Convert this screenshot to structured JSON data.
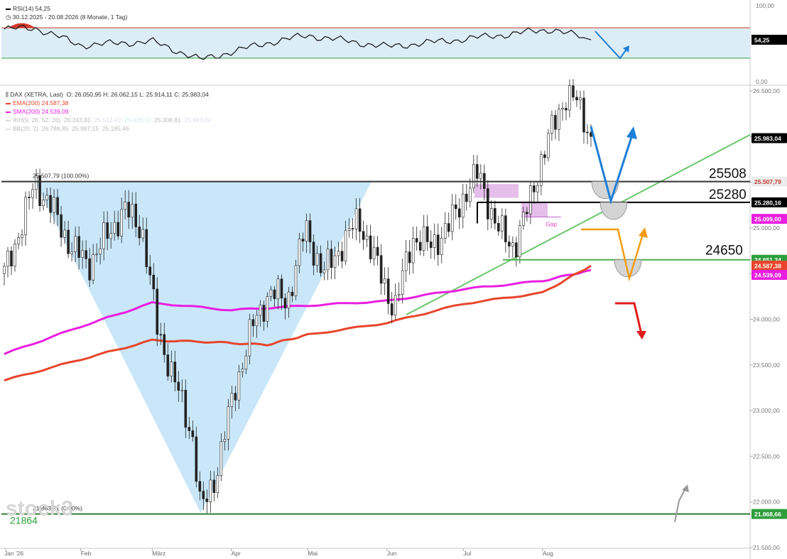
{
  "rsi_panel": {
    "title": "RSI(14)",
    "value": "54,25",
    "range_text": "30.12.2025 - 20.08.2026",
    "period_text": "(8 Monate, 1 Tag)",
    "axis_labels": [
      "100,00",
      "0,00"
    ],
    "value_badge": "54,25",
    "upper_band": 70,
    "lower_band": 30,
    "ylim": [
      0,
      100
    ]
  },
  "price_panel": {
    "legend": {
      "instrument": "DAX (XETRA, Last)",
      "ohlc": "O: 26.050,95  H: 26.062,15  L: 25.914,11  C: 25.983,04",
      "ema": "EMA(200)",
      "ema_value": "24.587,38",
      "sma": "SMA(200)",
      "sma_value": "24.539,09",
      "ikh": "IKH(9, 26, 52, 26)",
      "ikh_values": [
        "26.243,81",
        "25.512,42",
        "25.928,11",
        "25.308,81",
        "25.983,04"
      ],
      "bb": "BB(20, 2)",
      "bb_values": [
        "26.788,85",
        "25.987,15",
        "25.185,46"
      ]
    },
    "fib_labels": [
      "25.507,79 (100.00%)",
      "21.863,81 (0.00%)"
    ],
    "level_labels": [
      "25508",
      "25280",
      "24650"
    ],
    "gap_label": "Gap",
    "watermark": "stock3",
    "bottom_label": "21864",
    "price_badges": [
      {
        "text": "25.983,04",
        "bg": "#000000",
        "fg": "#ffffff"
      },
      {
        "text": "25.507,79",
        "bg": "#ececec",
        "fg": "#c0392b"
      },
      {
        "text": "25.280,16",
        "bg": "#000000",
        "fg": "#ffffff"
      },
      {
        "text": "25.099,00",
        "bg": "#e91ee0",
        "fg": "#ffffff"
      },
      {
        "text": "24.651,34",
        "bg": "#2e9e3a",
        "fg": "#ffffff"
      },
      {
        "text": "24.587,38",
        "bg": "#e8452c",
        "fg": "#ffffff"
      },
      {
        "text": "24.539,09",
        "bg": "#e91ee0",
        "fg": "#ffffff"
      },
      {
        "text": "21.868,66",
        "bg": "#2e9e3a",
        "fg": "#ffffff"
      }
    ],
    "y_axis_labels": [
      "26.500,00",
      "26.000,00",
      "25.500,00",
      "25.000,00",
      "24.500,00",
      "24.000,00",
      "23.500,00",
      "23.000,00",
      "22.500,00",
      "22.000,00",
      "21.500,00"
    ],
    "x_axis_labels": [
      "Jan '26",
      "Feb",
      "März",
      "Apr",
      "Mai",
      "Jun",
      "Jul",
      "Aug"
    ]
  },
  "chart_data": {
    "type": "candlestick",
    "ylim": [
      21500,
      26650
    ],
    "close_series": [
      {
        "date": "2026-01-02",
        "close": 24500
      },
      {
        "date": "2026-01-09",
        "close": 25050
      },
      {
        "date": "2026-01-14",
        "close": 25500
      },
      {
        "date": "2026-01-21",
        "close": 25200
      },
      {
        "date": "2026-01-28",
        "close": 24800
      },
      {
        "date": "2026-02-04",
        "close": 24600
      },
      {
        "date": "2026-02-11",
        "close": 24900
      },
      {
        "date": "2026-02-18",
        "close": 25200
      },
      {
        "date": "2026-02-25",
        "close": 25000
      },
      {
        "date": "2026-03-03",
        "close": 23900
      },
      {
        "date": "2026-03-10",
        "close": 23300
      },
      {
        "date": "2026-03-17",
        "close": 22700
      },
      {
        "date": "2026-03-20",
        "close": 21880
      },
      {
        "date": "2026-03-26",
        "close": 22300
      },
      {
        "date": "2026-04-02",
        "close": 23200
      },
      {
        "date": "2026-04-09",
        "close": 23900
      },
      {
        "date": "2026-04-16",
        "close": 24300
      },
      {
        "date": "2026-04-23",
        "close": 24200
      },
      {
        "date": "2026-04-30",
        "close": 25000
      },
      {
        "date": "2026-05-07",
        "close": 24500
      },
      {
        "date": "2026-05-14",
        "close": 24800
      },
      {
        "date": "2026-05-21",
        "close": 25100
      },
      {
        "date": "2026-05-28",
        "close": 24600
      },
      {
        "date": "2026-06-04",
        "close": 24100
      },
      {
        "date": "2026-06-11",
        "close": 24900
      },
      {
        "date": "2026-06-18",
        "close": 24800
      },
      {
        "date": "2026-06-25",
        "close": 25000
      },
      {
        "date": "2026-07-02",
        "close": 25400
      },
      {
        "date": "2026-07-07",
        "close": 25600
      },
      {
        "date": "2026-07-14",
        "close": 25000
      },
      {
        "date": "2026-07-21",
        "close": 24800
      },
      {
        "date": "2026-07-25",
        "close": 25100
      },
      {
        "date": "2026-07-31",
        "close": 25700
      },
      {
        "date": "2026-08-05",
        "close": 26100
      },
      {
        "date": "2026-08-10",
        "close": 26450
      },
      {
        "date": "2026-08-14",
        "close": 26400
      },
      {
        "date": "2026-08-18",
        "close": 26150
      },
      {
        "date": "2026-08-20",
        "close": 25983
      }
    ],
    "ema200": [
      {
        "date": "2026-01-02",
        "value": 23330
      },
      {
        "date": "2026-02-01",
        "value": 23560
      },
      {
        "date": "2026-03-01",
        "value": 23770
      },
      {
        "date": "2026-03-25",
        "value": 23750
      },
      {
        "date": "2026-04-15",
        "value": 23720
      },
      {
        "date": "2026-05-01",
        "value": 23830
      },
      {
        "date": "2026-06-01",
        "value": 23960
      },
      {
        "date": "2026-07-01",
        "value": 24170
      },
      {
        "date": "2026-08-01",
        "value": 24290
      },
      {
        "date": "2026-08-20",
        "value": 24587
      }
    ],
    "sma200": [
      {
        "date": "2026-01-02",
        "value": 23620
      },
      {
        "date": "2026-02-01",
        "value": 23920
      },
      {
        "date": "2026-03-01",
        "value": 24180
      },
      {
        "date": "2026-04-01",
        "value": 24100
      },
      {
        "date": "2026-05-01",
        "value": 24150
      },
      {
        "date": "2026-06-01",
        "value": 24200
      },
      {
        "date": "2026-07-01",
        "value": 24330
      },
      {
        "date": "2026-08-01",
        "value": 24420
      },
      {
        "date": "2026-08-20",
        "value": 24539
      }
    ],
    "rsi14": [
      {
        "date": "2026-01-02",
        "value": 68
      },
      {
        "date": "2026-01-14",
        "value": 70
      },
      {
        "date": "2026-02-01",
        "value": 47
      },
      {
        "date": "2026-03-01",
        "value": 52
      },
      {
        "date": "2026-03-20",
        "value": 28
      },
      {
        "date": "2026-04-15",
        "value": 50
      },
      {
        "date": "2026-05-01",
        "value": 60
      },
      {
        "date": "2026-06-01",
        "value": 45
      },
      {
        "date": "2026-07-01",
        "value": 55
      },
      {
        "date": "2026-08-05",
        "value": 68
      },
      {
        "date": "2026-08-20",
        "value": 54.25
      }
    ],
    "horizontal_levels": [
      {
        "value": 25507.79,
        "color": "#333333"
      },
      {
        "value": 25280.16,
        "color": "#000000"
      },
      {
        "value": 24651.34,
        "color": "#4caf50"
      },
      {
        "value": 21868.66,
        "color": "#2e7d32"
      }
    ],
    "fibonacci": {
      "high": 25507.79,
      "low": 21863.81
    },
    "colors": {
      "ema": "#e8452c",
      "sma": "#e91ee0",
      "rsi": "#111111",
      "triangle": "#bfe3f8",
      "trend": "#6cc66c",
      "scenario_up": "#1e7fd8",
      "scenario_alt": "#f39c12",
      "scenario_down": "#e01b1b"
    }
  }
}
